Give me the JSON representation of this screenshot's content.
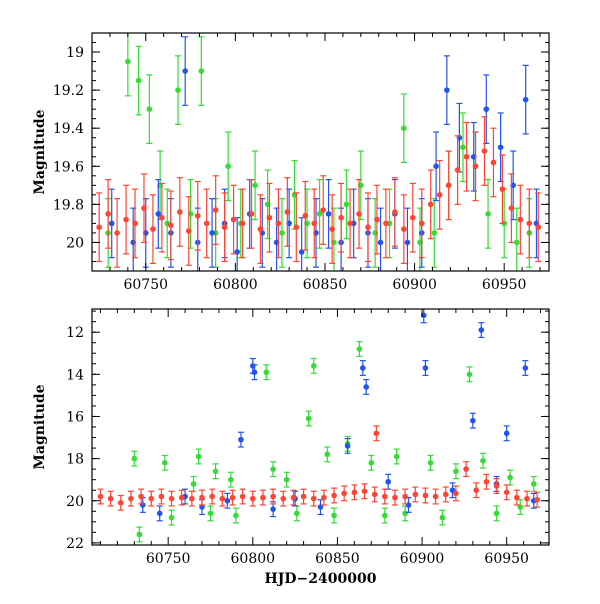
{
  "chart_data": [
    {
      "type": "scatter",
      "title": "",
      "xlabel": "",
      "ylabel": "Magnitude",
      "xlim": [
        60720,
        60975
      ],
      "ylim": [
        20.15,
        18.9
      ],
      "y_inverted": true,
      "x_ticks": [
        60750,
        60800,
        60850,
        60900,
        60950
      ],
      "y_ticks": [
        19,
        19.2,
        19.4,
        19.6,
        19.8,
        20
      ],
      "y_tick_labels": [
        "19",
        "19.2",
        "19.4",
        "19.6",
        "19.8",
        "20"
      ],
      "x_tick_labels": [
        "60750",
        "60800",
        "60850",
        "60900",
        "60950"
      ],
      "grid": false,
      "error_bars": true,
      "series": [
        {
          "color": "#33dd33",
          "points": [
            [
              60729,
              19.95
            ],
            [
              60740,
              19.05
            ],
            [
              60746,
              19.15
            ],
            [
              60752,
              19.3
            ],
            [
              60758,
              19.7
            ],
            [
              60762,
              19.9
            ],
            [
              60768,
              19.2
            ],
            [
              60775,
              19.85
            ],
            [
              60781,
              19.1
            ],
            [
              60789,
              19.95
            ],
            [
              60796,
              19.6
            ],
            [
              60803,
              19.9
            ],
            [
              60811,
              19.7
            ],
            [
              60818,
              19.8
            ],
            [
              60826,
              19.95
            ],
            [
              60833,
              19.75
            ],
            [
              60840,
              19.9
            ],
            [
              60847,
              19.85
            ],
            [
              60855,
              20.0
            ],
            [
              60862,
              19.8
            ],
            [
              60870,
              19.7
            ],
            [
              60878,
              19.95
            ],
            [
              60886,
              19.9
            ],
            [
              60894,
              19.4
            ],
            [
              60903,
              20.0
            ],
            [
              60911,
              19.95
            ],
            [
              60919,
              19.7
            ],
            [
              60927,
              19.5
            ],
            [
              60934,
              19.6
            ],
            [
              60941,
              19.85
            ],
            [
              60950,
              19.9
            ],
            [
              60957,
              20.0
            ],
            [
              60964,
              19.95
            ]
          ]
        },
        {
          "color": "#2255ee",
          "points": [
            [
              60731,
              19.9
            ],
            [
              60743,
              20.0
            ],
            [
              60750,
              19.95
            ],
            [
              60757,
              19.85
            ],
            [
              60764,
              19.95
            ],
            [
              60772,
              19.1
            ],
            [
              60779,
              20.0
            ],
            [
              60787,
              19.95
            ],
            [
              60794,
              19.9
            ],
            [
              60801,
              20.05
            ],
            [
              60808,
              19.85
            ],
            [
              60815,
              19.95
            ],
            [
              60823,
              20.0
            ],
            [
              60830,
              19.9
            ],
            [
              60837,
              20.05
            ],
            [
              60845,
              19.95
            ],
            [
              60852,
              19.85
            ],
            [
              60859,
              20.0
            ],
            [
              60866,
              19.9
            ],
            [
              60874,
              19.95
            ],
            [
              60881,
              20.0
            ],
            [
              60889,
              19.85
            ],
            [
              60896,
              20.0
            ],
            [
              60904,
              19.95
            ],
            [
              60912,
              19.6
            ],
            [
              60918,
              19.2
            ],
            [
              60925,
              19.45
            ],
            [
              60933,
              19.55
            ],
            [
              60940,
              19.3
            ],
            [
              60948,
              19.5
            ],
            [
              60955,
              19.7
            ],
            [
              60962,
              19.25
            ],
            [
              60968,
              19.9
            ]
          ]
        },
        {
          "color": "#ff4433",
          "points": [
            [
              60724,
              19.92
            ],
            [
              60729,
              19.85
            ],
            [
              60734,
              19.95
            ],
            [
              60739,
              19.88
            ],
            [
              60744,
              19.9
            ],
            [
              60749,
              19.82
            ],
            [
              60754,
              19.93
            ],
            [
              60759,
              19.87
            ],
            [
              60764,
              19.91
            ],
            [
              60769,
              19.84
            ],
            [
              60774,
              19.94
            ],
            [
              60779,
              19.86
            ],
            [
              60784,
              19.9
            ],
            [
              60789,
              19.83
            ],
            [
              60794,
              19.92
            ],
            [
              60799,
              19.88
            ],
            [
              60804,
              19.9
            ],
            [
              60809,
              19.85
            ],
            [
              60814,
              19.93
            ],
            [
              60819,
              19.87
            ],
            [
              60824,
              19.9
            ],
            [
              60829,
              19.84
            ],
            [
              60834,
              19.92
            ],
            [
              60839,
              19.86
            ],
            [
              60844,
              19.9
            ],
            [
              60849,
              19.83
            ],
            [
              60854,
              19.93
            ],
            [
              60859,
              19.87
            ],
            [
              60864,
              19.9
            ],
            [
              60869,
              19.85
            ],
            [
              60874,
              19.92
            ],
            [
              60879,
              19.88
            ],
            [
              60884,
              19.9
            ],
            [
              60889,
              19.84
            ],
            [
              60894,
              19.93
            ],
            [
              60899,
              19.87
            ],
            [
              60904,
              19.9
            ],
            [
              60909,
              19.8
            ],
            [
              60914,
              19.75
            ],
            [
              60919,
              19.7
            ],
            [
              60924,
              19.62
            ],
            [
              60929,
              19.55
            ],
            [
              60934,
              19.6
            ],
            [
              60939,
              19.52
            ],
            [
              60944,
              19.58
            ],
            [
              60949,
              19.72
            ],
            [
              60954,
              19.82
            ],
            [
              60959,
              19.88
            ],
            [
              60964,
              19.9
            ],
            [
              60969,
              19.92
            ]
          ]
        }
      ]
    },
    {
      "type": "scatter",
      "title": "",
      "xlabel": "HJD−2400000",
      "ylabel": "Magnitude",
      "xlim": [
        60705,
        60975
      ],
      "ylim": [
        22.1,
        10.9
      ],
      "y_inverted": true,
      "x_ticks": [
        60750,
        60800,
        60850,
        60900,
        60950
      ],
      "y_ticks": [
        12,
        14,
        16,
        18,
        20,
        22
      ],
      "x_tick_labels": [
        "60750",
        "60800",
        "60850",
        "60900",
        "60950"
      ],
      "y_tick_labels": [
        "12",
        "14",
        "16",
        "18",
        "20",
        "22"
      ],
      "grid": false,
      "error_bars": true,
      "series": [
        {
          "color": "#33dd33",
          "points": [
            [
              60730,
              18.0
            ],
            [
              60733,
              21.6
            ],
            [
              60748,
              18.2
            ],
            [
              60752,
              20.8
            ],
            [
              60765,
              19.2
            ],
            [
              60768,
              17.9
            ],
            [
              60775,
              20.6
            ],
            [
              60778,
              18.6
            ],
            [
              60787,
              19.0
            ],
            [
              60790,
              20.7
            ],
            [
              60808,
              13.9
            ],
            [
              60812,
              18.5
            ],
            [
              60820,
              19.0
            ],
            [
              60826,
              20.6
            ],
            [
              60833,
              16.1
            ],
            [
              60836,
              13.6
            ],
            [
              60844,
              17.8
            ],
            [
              60848,
              20.7
            ],
            [
              60856,
              17.3
            ],
            [
              60863,
              12.8
            ],
            [
              60870,
              18.2
            ],
            [
              60878,
              20.7
            ],
            [
              60885,
              17.9
            ],
            [
              60890,
              20.6
            ],
            [
              60905,
              18.2
            ],
            [
              60912,
              20.8
            ],
            [
              60920,
              18.6
            ],
            [
              60928,
              14.0
            ],
            [
              60936,
              18.1
            ],
            [
              60944,
              20.6
            ],
            [
              60952,
              18.9
            ],
            [
              60958,
              20.3
            ],
            [
              60966,
              19.2
            ]
          ]
        },
        {
          "color": "#2255ee",
          "points": [
            [
              60735,
              20.2
            ],
            [
              60745,
              20.6
            ],
            [
              60760,
              19.8
            ],
            [
              60770,
              20.3
            ],
            [
              60785,
              20.0
            ],
            [
              60793,
              17.1
            ],
            [
              60800,
              13.6
            ],
            [
              60801,
              13.9
            ],
            [
              60812,
              20.4
            ],
            [
              60825,
              19.9
            ],
            [
              60840,
              20.3
            ],
            [
              60856,
              17.4
            ],
            [
              60865,
              13.7
            ],
            [
              60867,
              14.6
            ],
            [
              60880,
              19.1
            ],
            [
              60892,
              20.2
            ],
            [
              60901,
              11.2
            ],
            [
              60902,
              13.7
            ],
            [
              60918,
              19.5
            ],
            [
              60930,
              16.2
            ],
            [
              60935,
              11.9
            ],
            [
              60944,
              19.2
            ],
            [
              60950,
              16.8
            ],
            [
              60961,
              13.7
            ],
            [
              60966,
              20.0
            ]
          ]
        },
        {
          "color": "#ff4433",
          "points": [
            [
              60710,
              19.8
            ],
            [
              60716,
              19.9
            ],
            [
              60722,
              20.1
            ],
            [
              60728,
              19.9
            ],
            [
              60734,
              19.8
            ],
            [
              60740,
              19.9
            ],
            [
              60746,
              19.8
            ],
            [
              60752,
              19.9
            ],
            [
              60758,
              19.85
            ],
            [
              60764,
              19.9
            ],
            [
              60770,
              19.85
            ],
            [
              60776,
              19.8
            ],
            [
              60782,
              19.9
            ],
            [
              60788,
              19.85
            ],
            [
              60794,
              19.8
            ],
            [
              60800,
              19.9
            ],
            [
              60806,
              19.85
            ],
            [
              60812,
              19.8
            ],
            [
              60818,
              19.9
            ],
            [
              60824,
              19.85
            ],
            [
              60830,
              19.8
            ],
            [
              60836,
              19.9
            ],
            [
              60842,
              19.85
            ],
            [
              60848,
              19.75
            ],
            [
              60854,
              19.65
            ],
            [
              60860,
              19.6
            ],
            [
              60866,
              19.55
            ],
            [
              60872,
              19.7
            ],
            [
              60878,
              19.8
            ],
            [
              60884,
              19.85
            ],
            [
              60890,
              19.8
            ],
            [
              60896,
              19.7
            ],
            [
              60902,
              19.75
            ],
            [
              60908,
              19.8
            ],
            [
              60914,
              19.7
            ],
            [
              60920,
              19.65
            ],
            [
              60926,
              18.5
            ],
            [
              60932,
              19.5
            ],
            [
              60938,
              19.1
            ],
            [
              60944,
              19.3
            ],
            [
              60950,
              19.6
            ],
            [
              60956,
              19.85
            ],
            [
              60962,
              19.9
            ],
            [
              60968,
              19.95
            ],
            [
              60873,
              16.8
            ]
          ]
        }
      ]
    }
  ]
}
